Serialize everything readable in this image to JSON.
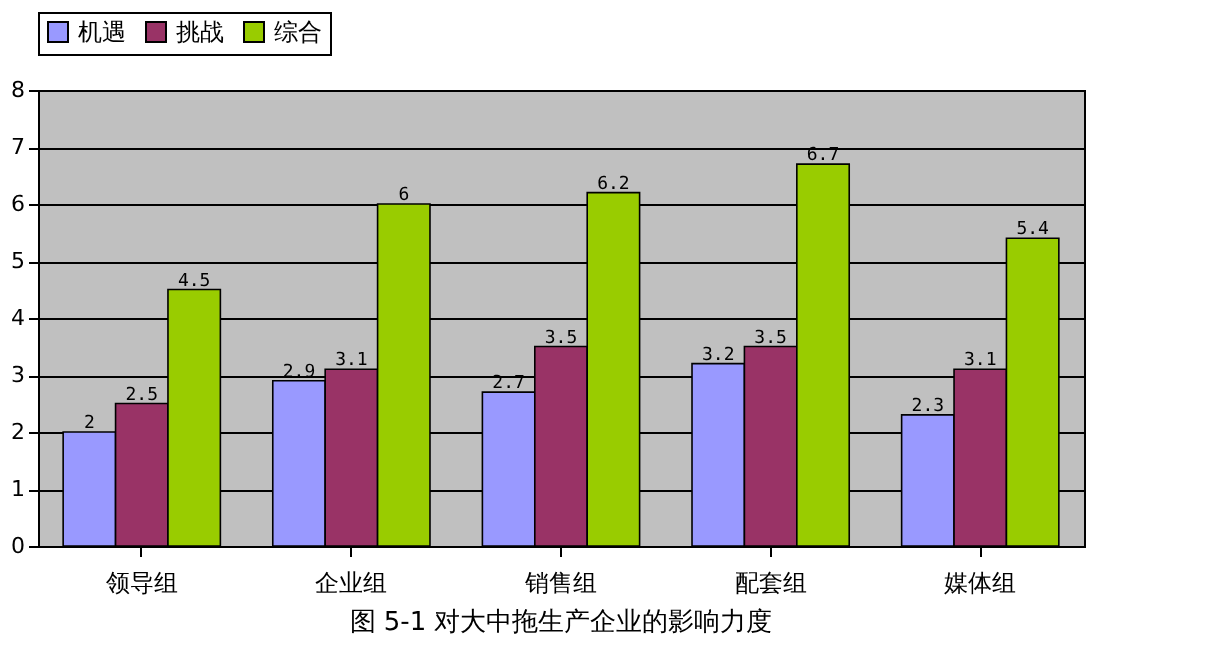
{
  "chart_data": {
    "type": "bar",
    "title": "图 5-1 对大中拖生产企业的影响力度",
    "categories": [
      "领导组",
      "企业组",
      "销售组",
      "配套组",
      "媒体组"
    ],
    "series": [
      {
        "name": "机遇",
        "color": "#9999ff",
        "values": [
          2,
          2.9,
          2.7,
          3.2,
          2.3
        ]
      },
      {
        "name": "挑战",
        "color": "#993366",
        "values": [
          2.5,
          3.1,
          3.5,
          3.5,
          3.1
        ]
      },
      {
        "name": "综合",
        "color": "#99cc00",
        "values": [
          4.5,
          6,
          6.2,
          6.7,
          5.4
        ]
      }
    ],
    "ylim": [
      0,
      8
    ],
    "yticks": [
      0,
      1,
      2,
      3,
      4,
      5,
      6,
      7,
      8
    ],
    "grid": "y",
    "legend": "top",
    "data_labels": true
  }
}
